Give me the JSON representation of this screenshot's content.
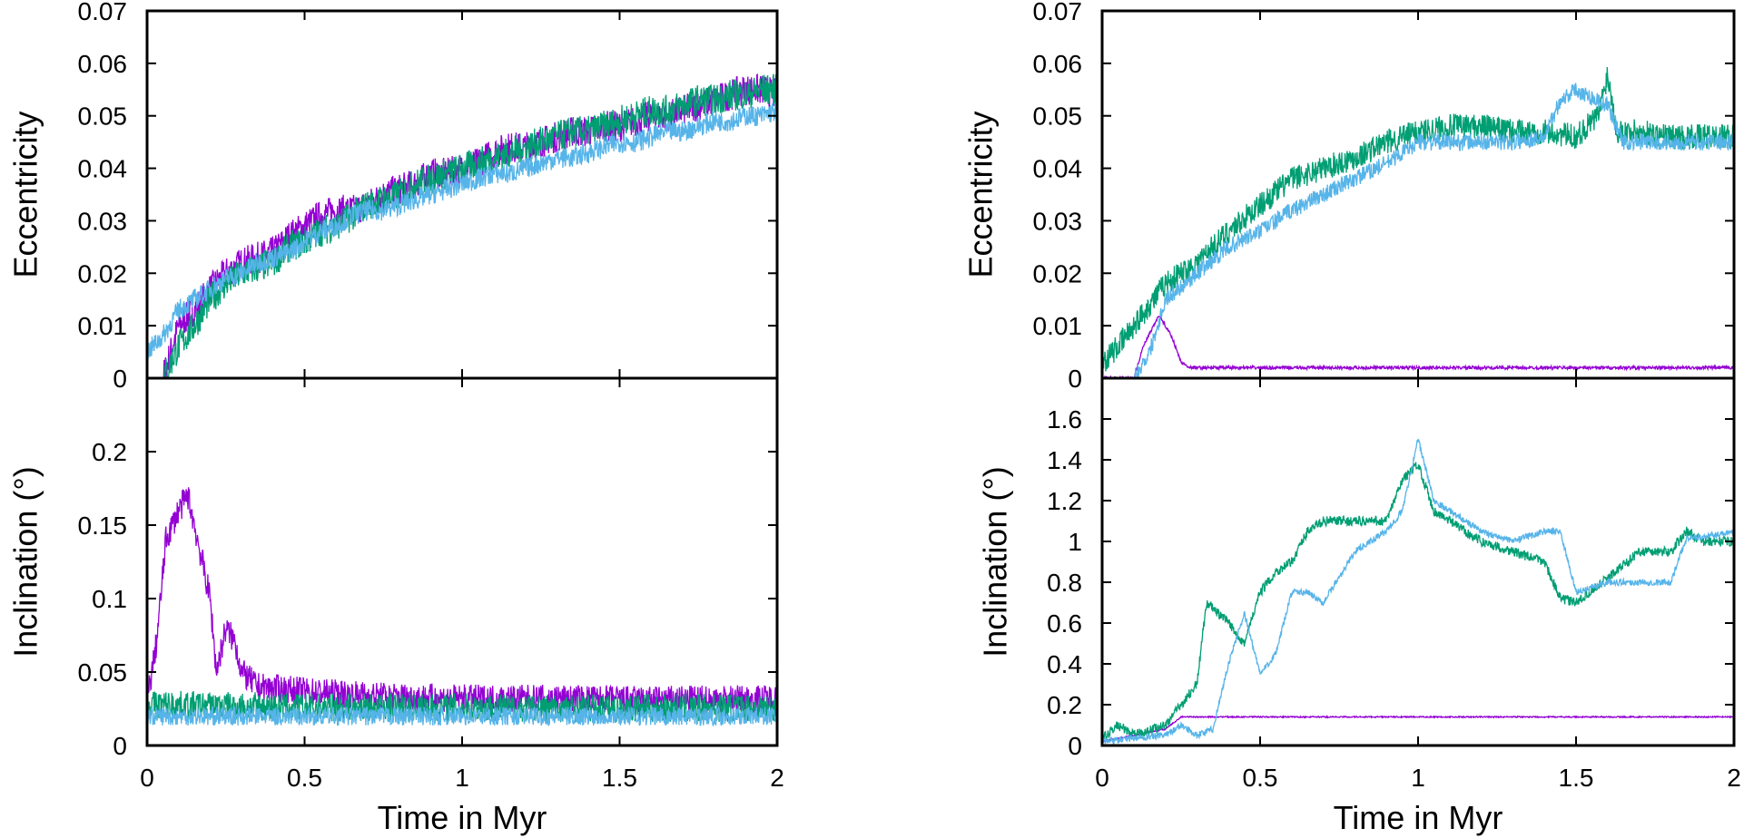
{
  "colors": {
    "purple": "#9400d3",
    "green": "#009e73",
    "blue": "#56b4e9"
  },
  "chart_data": [
    {
      "type": "line",
      "panel": "top-left",
      "xlabel": "",
      "ylabel": "Eccentricity",
      "xlim": [
        0,
        2
      ],
      "ylim": [
        0,
        0.07
      ],
      "xticks": [],
      "yticks": [
        "0",
        "0.01",
        "0.02",
        "0.03",
        "0.04",
        "0.05",
        "0.06",
        "0.07"
      ],
      "grid": false,
      "series": [
        {
          "color": "#9400d3",
          "x": [
            0,
            0.05,
            0.1,
            0.15,
            0.2,
            0.25,
            0.3,
            0.35,
            0.4,
            0.45,
            0.5,
            0.55,
            0.6,
            0.65,
            0.7,
            0.75,
            0.8,
            0.85,
            0.9,
            0.95,
            1,
            1.05,
            1.1,
            1.15,
            1.2,
            1.25,
            1.3,
            1.35,
            1.4,
            1.45,
            1.5,
            1.55,
            1.6,
            1.65,
            1.7,
            1.75,
            1.8,
            1.85,
            1.9,
            1.95,
            2
          ],
          "y": [
            0,
            0,
            0.01,
            0.013,
            0.017,
            0.02,
            0.022,
            0.023,
            0.024,
            0.027,
            0.029,
            0.031,
            0.032,
            0.032,
            0.033,
            0.035,
            0.036,
            0.037,
            0.039,
            0.039,
            0.04,
            0.041,
            0.043,
            0.044,
            0.044,
            0.045,
            0.046,
            0.047,
            0.047,
            0.048,
            0.048,
            0.049,
            0.05,
            0.05,
            0.051,
            0.052,
            0.053,
            0.054,
            0.055,
            0.055,
            0.054
          ]
        },
        {
          "color": "#009e73",
          "x": [
            0,
            0.05,
            0.1,
            0.15,
            0.2,
            0.25,
            0.3,
            0.35,
            0.4,
            0.45,
            0.5,
            0.55,
            0.6,
            0.65,
            0.7,
            0.75,
            0.8,
            0.85,
            0.9,
            0.95,
            1,
            1.05,
            1.1,
            1.15,
            1.2,
            1.25,
            1.3,
            1.35,
            1.4,
            1.45,
            1.5,
            1.55,
            1.6,
            1.65,
            1.7,
            1.75,
            1.8,
            1.85,
            1.9,
            1.95,
            2
          ],
          "y": [
            0,
            0,
            0.006,
            0.01,
            0.015,
            0.018,
            0.02,
            0.021,
            0.022,
            0.025,
            0.026,
            0.028,
            0.029,
            0.031,
            0.033,
            0.034,
            0.035,
            0.037,
            0.038,
            0.039,
            0.04,
            0.041,
            0.042,
            0.043,
            0.044,
            0.045,
            0.046,
            0.047,
            0.047,
            0.048,
            0.049,
            0.05,
            0.051,
            0.051,
            0.052,
            0.053,
            0.053,
            0.054,
            0.054,
            0.055,
            0.055
          ]
        },
        {
          "color": "#56b4e9",
          "x": [
            0,
            0.05,
            0.1,
            0.15,
            0.2,
            0.25,
            0.3,
            0.35,
            0.4,
            0.45,
            0.5,
            0.55,
            0.6,
            0.65,
            0.7,
            0.75,
            0.8,
            0.85,
            0.9,
            0.95,
            1,
            1.05,
            1.1,
            1.15,
            1.2,
            1.25,
            1.3,
            1.35,
            1.4,
            1.45,
            1.5,
            1.55,
            1.6,
            1.65,
            1.7,
            1.75,
            1.8,
            1.85,
            1.9,
            1.95,
            2
          ],
          "y": [
            0.005,
            0.008,
            0.013,
            0.015,
            0.017,
            0.019,
            0.02,
            0.022,
            0.023,
            0.024,
            0.026,
            0.028,
            0.029,
            0.031,
            0.032,
            0.032,
            0.033,
            0.034,
            0.035,
            0.036,
            0.037,
            0.038,
            0.039,
            0.039,
            0.04,
            0.041,
            0.042,
            0.042,
            0.043,
            0.044,
            0.045,
            0.045,
            0.046,
            0.047,
            0.047,
            0.048,
            0.049,
            0.049,
            0.05,
            0.05,
            0.051
          ]
        }
      ]
    },
    {
      "type": "line",
      "panel": "bottom-left",
      "xlabel": "Time in Myr",
      "ylabel": "Inclination (°)",
      "xlim": [
        0,
        2
      ],
      "ylim": [
        0,
        0.25
      ],
      "xticks": [
        "0",
        "0.5",
        "1",
        "1.5",
        "2"
      ],
      "yticks": [
        "0",
        "0.05",
        "0.1",
        "0.15",
        "0.2"
      ],
      "grid": false,
      "series": [
        {
          "color": "#9400d3",
          "x": [
            0,
            0.03,
            0.06,
            0.1,
            0.13,
            0.16,
            0.2,
            0.22,
            0.25,
            0.28,
            0.3,
            0.35,
            0.5,
            0.7,
            1,
            1.3,
            1.6,
            2
          ],
          "y": [
            0.03,
            0.07,
            0.14,
            0.16,
            0.17,
            0.14,
            0.1,
            0.05,
            0.08,
            0.07,
            0.05,
            0.04,
            0.037,
            0.034,
            0.032,
            0.032,
            0.031,
            0.032
          ]
        },
        {
          "color": "#009e73",
          "x": [
            0,
            0.5,
            1,
            1.5,
            2
          ],
          "y": [
            0.028,
            0.026,
            0.026,
            0.025,
            0.026
          ]
        },
        {
          "color": "#56b4e9",
          "x": [
            0,
            0.5,
            1,
            1.5,
            2
          ],
          "y": [
            0.02,
            0.02,
            0.02,
            0.02,
            0.02
          ]
        }
      ]
    },
    {
      "type": "line",
      "panel": "top-right",
      "xlabel": "",
      "ylabel": "Eccentricity",
      "xlim": [
        0,
        2
      ],
      "ylim": [
        0,
        0.07
      ],
      "xticks": [],
      "yticks": [
        "0",
        "0.01",
        "0.02",
        "0.03",
        "0.04",
        "0.05",
        "0.06",
        "0.07"
      ],
      "grid": false,
      "series": [
        {
          "color": "#9400d3",
          "x": [
            0,
            0.1,
            0.13,
            0.18,
            0.22,
            0.25,
            0.28,
            0.35,
            1,
            2
          ],
          "y": [
            0,
            0,
            0.006,
            0.012,
            0.008,
            0.003,
            0.002,
            0.002,
            0.002,
            0.002
          ]
        },
        {
          "color": "#009e73",
          "x": [
            0,
            0.05,
            0.1,
            0.2,
            0.3,
            0.4,
            0.5,
            0.6,
            0.7,
            0.8,
            0.9,
            1,
            1.1,
            1.2,
            1.3,
            1.4,
            1.5,
            1.57,
            1.6,
            1.63,
            1.7,
            1.8,
            1.9,
            2
          ],
          "y": [
            0.003,
            0.006,
            0.01,
            0.018,
            0.022,
            0.028,
            0.033,
            0.038,
            0.04,
            0.042,
            0.045,
            0.047,
            0.048,
            0.048,
            0.047,
            0.047,
            0.046,
            0.05,
            0.058,
            0.047,
            0.047,
            0.046,
            0.046,
            0.046
          ]
        },
        {
          "color": "#56b4e9",
          "x": [
            0,
            0.1,
            0.15,
            0.2,
            0.3,
            0.4,
            0.5,
            0.6,
            0.7,
            0.8,
            0.9,
            1,
            1.1,
            1.2,
            1.3,
            1.4,
            1.45,
            1.5,
            1.6,
            1.65,
            1.7,
            1.8,
            1.9,
            2
          ],
          "y": [
            0,
            0,
            0.005,
            0.015,
            0.02,
            0.025,
            0.028,
            0.032,
            0.035,
            0.038,
            0.041,
            0.045,
            0.045,
            0.045,
            0.045,
            0.046,
            0.053,
            0.055,
            0.052,
            0.045,
            0.045,
            0.045,
            0.045,
            0.045
          ]
        }
      ]
    },
    {
      "type": "line",
      "panel": "bottom-right",
      "xlabel": "Time in Myr",
      "ylabel": "Inclination (°)",
      "xlim": [
        0,
        2
      ],
      "ylim": [
        0,
        1.8
      ],
      "xticks": [
        "0",
        "0.5",
        "1",
        "1.5",
        "2"
      ],
      "yticks": [
        "0",
        "0.2",
        "0.4",
        "0.6",
        "0.8",
        "1",
        "1.2",
        "1.4",
        "1.6"
      ],
      "grid": false,
      "series": [
        {
          "color": "#9400d3",
          "x": [
            0,
            0.1,
            0.2,
            0.25,
            0.5,
            1,
            1.5,
            2
          ],
          "y": [
            0.02,
            0.05,
            0.08,
            0.14,
            0.14,
            0.14,
            0.14,
            0.14
          ]
        },
        {
          "color": "#009e73",
          "x": [
            0,
            0.05,
            0.1,
            0.2,
            0.25,
            0.3,
            0.33,
            0.4,
            0.45,
            0.5,
            0.55,
            0.6,
            0.65,
            0.7,
            0.8,
            0.9,
            0.95,
            1,
            1.05,
            1.1,
            1.2,
            1.3,
            1.4,
            1.45,
            1.5,
            1.6,
            1.7,
            1.8,
            1.85,
            1.9,
            2
          ],
          "y": [
            0.03,
            0.1,
            0.05,
            0.1,
            0.2,
            0.3,
            0.7,
            0.6,
            0.5,
            0.75,
            0.85,
            0.9,
            1.05,
            1.1,
            1.1,
            1.1,
            1.3,
            1.38,
            1.15,
            1.1,
            1.0,
            0.95,
            0.9,
            0.72,
            0.7,
            0.82,
            0.95,
            0.95,
            1.05,
            1.0,
            1.0
          ]
        },
        {
          "color": "#56b4e9",
          "x": [
            0,
            0.2,
            0.25,
            0.3,
            0.35,
            0.4,
            0.45,
            0.5,
            0.55,
            0.6,
            0.65,
            0.7,
            0.8,
            0.9,
            0.95,
            1,
            1.05,
            1.1,
            1.2,
            1.3,
            1.4,
            1.45,
            1.5,
            1.6,
            1.7,
            1.8,
            1.85,
            1.9,
            2
          ],
          "y": [
            0.02,
            0.05,
            0.1,
            0.05,
            0.08,
            0.4,
            0.65,
            0.35,
            0.45,
            0.75,
            0.75,
            0.7,
            0.95,
            1.05,
            1.15,
            1.5,
            1.2,
            1.15,
            1.05,
            1.0,
            1.05,
            1.05,
            0.75,
            0.8,
            0.8,
            0.8,
            1.02,
            1.02,
            1.05
          ]
        }
      ]
    }
  ]
}
